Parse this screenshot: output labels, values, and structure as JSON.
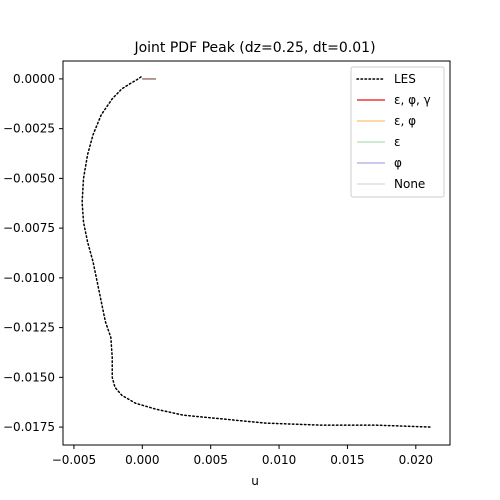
{
  "chart_data": {
    "type": "line",
    "title": "Joint PDF Peak (dz=0.25, dt=0.01)",
    "xlabel": "u",
    "ylabel": "",
    "xlim": [
      -0.0058,
      0.0225
    ],
    "ylim": [
      -0.0184,
      0.0009
    ],
    "xticks": [
      -0.005,
      0.0,
      0.005,
      0.01,
      0.015,
      0.02
    ],
    "xtick_labels": [
      "−0.005",
      "0.000",
      "0.005",
      "0.010",
      "0.015",
      "0.020"
    ],
    "yticks": [
      0.0,
      -0.0025,
      -0.005,
      -0.0075,
      -0.01,
      -0.0125,
      -0.015,
      -0.0175
    ],
    "ytick_labels": [
      "0.0000",
      "−0.0025",
      "−0.0050",
      "−0.0075",
      "−0.0100",
      "−0.0125",
      "−0.0150",
      "−0.0175"
    ],
    "grid": false,
    "legend_position": "top-right",
    "series": [
      {
        "name": "LES",
        "color": "#000000",
        "style": "dotted",
        "width": 1.5,
        "opacity": 1,
        "points": [
          [
            -0.0001,
            0.0001
          ],
          [
            -0.0003,
            0.0
          ],
          [
            -0.0008,
            -0.0002
          ],
          [
            -0.0015,
            -0.0005
          ],
          [
            -0.0022,
            -0.001
          ],
          [
            -0.003,
            -0.0018
          ],
          [
            -0.0036,
            -0.0028
          ],
          [
            -0.004,
            -0.0038
          ],
          [
            -0.0043,
            -0.005
          ],
          [
            -0.0044,
            -0.0062
          ],
          [
            -0.0043,
            -0.0072
          ],
          [
            -0.004,
            -0.0082
          ],
          [
            -0.0036,
            -0.0092
          ],
          [
            -0.0033,
            -0.0102
          ],
          [
            -0.003,
            -0.0112
          ],
          [
            -0.0027,
            -0.0122
          ],
          [
            -0.0023,
            -0.013
          ],
          [
            -0.0022,
            -0.014
          ],
          [
            -0.0022,
            -0.015
          ],
          [
            -0.002,
            -0.0155
          ],
          [
            -0.0015,
            -0.0159
          ],
          [
            -0.0005,
            -0.0163
          ],
          [
            0.001,
            -0.0166
          ],
          [
            0.003,
            -0.0169
          ],
          [
            0.006,
            -0.0171
          ],
          [
            0.009,
            -0.0173
          ],
          [
            0.013,
            -0.0174
          ],
          [
            0.017,
            -0.0174
          ],
          [
            0.0211,
            -0.0175
          ]
        ]
      },
      {
        "name": "ε, φ, γ",
        "color": "#e41a1c",
        "style": "solid",
        "width": 1.5,
        "opacity": 0.85,
        "points": [
          [
            0.0,
            0.0
          ],
          [
            0.0005,
            0.0
          ],
          [
            0.001,
            0.0
          ]
        ]
      },
      {
        "name": "ε, φ",
        "color": "#ff9f1c",
        "style": "solid",
        "width": 1.5,
        "opacity": 0.55,
        "points": [
          [
            0.0,
            0.0
          ],
          [
            0.0005,
            0.0
          ],
          [
            0.001,
            0.0
          ]
        ]
      },
      {
        "name": "ε",
        "color": "#4daf4a",
        "style": "solid",
        "width": 1.5,
        "opacity": 0.35,
        "points": [
          [
            0.0,
            0.0
          ],
          [
            0.0005,
            0.0
          ],
          [
            0.001,
            0.0
          ]
        ]
      },
      {
        "name": "φ",
        "color": "#6a5acd",
        "style": "solid",
        "width": 1.5,
        "opacity": 0.45,
        "points": [
          [
            0.0,
            0.0
          ],
          [
            0.0005,
            0.0
          ],
          [
            0.001,
            0.0
          ]
        ]
      },
      {
        "name": "None",
        "color": "#bdbdbd",
        "style": "solid",
        "width": 1.5,
        "opacity": 0.45,
        "points": [
          [
            0.0,
            0.0
          ],
          [
            0.0005,
            0.0
          ],
          [
            0.001,
            0.0
          ]
        ]
      }
    ]
  }
}
